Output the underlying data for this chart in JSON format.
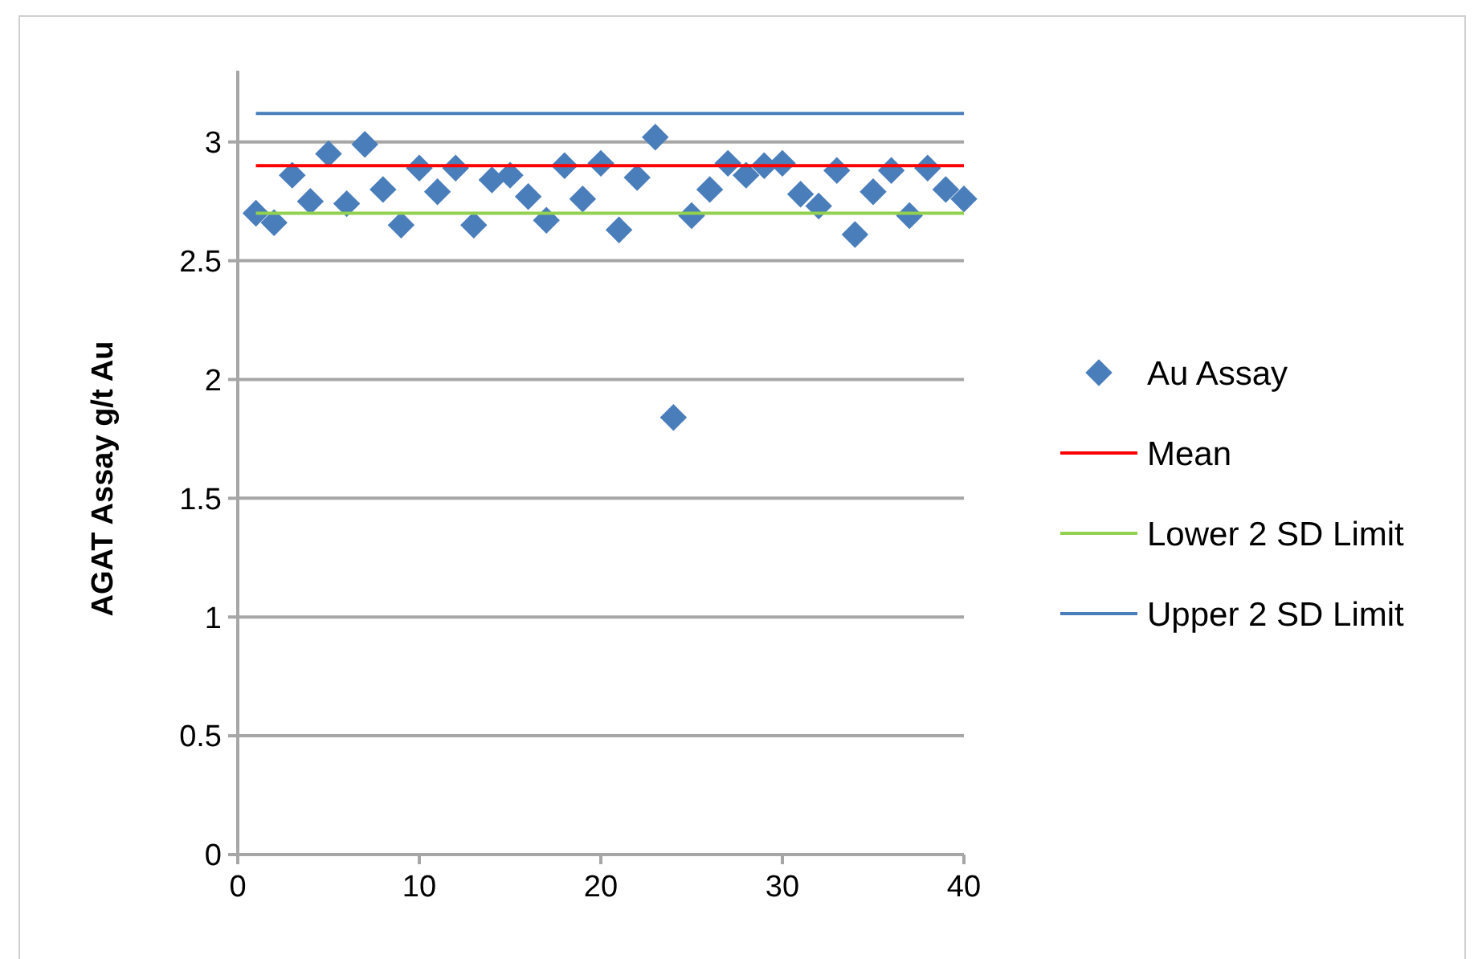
{
  "chart_data": {
    "type": "scatter",
    "ylabel": "AGAT Assay g/t Au",
    "x": [
      1,
      2,
      3,
      4,
      5,
      6,
      7,
      8,
      9,
      10,
      11,
      12,
      13,
      14,
      15,
      16,
      17,
      18,
      19,
      20,
      21,
      22,
      23,
      24,
      25,
      26,
      27,
      28,
      29,
      30,
      31,
      32,
      33,
      34,
      35,
      36,
      37,
      38,
      39,
      40
    ],
    "series": [
      {
        "name": "Au Assay",
        "color": "#4a7ebb",
        "marker": "diamond",
        "values": [
          2.7,
          2.66,
          2.86,
          2.75,
          2.95,
          2.74,
          2.99,
          2.8,
          2.65,
          2.89,
          2.79,
          2.89,
          2.65,
          2.84,
          2.86,
          2.77,
          2.67,
          2.9,
          2.76,
          2.91,
          2.63,
          2.85,
          3.02,
          1.84,
          2.69,
          2.8,
          2.91,
          2.86,
          2.9,
          2.91,
          2.78,
          2.73,
          2.88,
          2.61,
          2.79,
          2.88,
          2.69,
          2.89,
          2.8,
          2.76
        ]
      },
      {
        "name": "Mean",
        "type": "line",
        "color": "#ff0000",
        "marker": "none",
        "values": [
          2.9,
          2.9,
          2.9,
          2.9,
          2.9,
          2.9,
          2.9,
          2.9,
          2.9,
          2.9,
          2.9,
          2.9,
          2.9,
          2.9,
          2.9,
          2.9,
          2.9,
          2.9,
          2.9,
          2.9,
          2.9,
          2.9,
          2.9,
          2.9,
          2.9,
          2.9,
          2.9,
          2.9,
          2.9,
          2.9,
          2.9,
          2.9,
          2.9,
          2.9,
          2.9,
          2.9,
          2.9,
          2.9,
          2.9,
          2.9
        ]
      },
      {
        "name": "Lower 2 SD Limit",
        "type": "line",
        "color": "#92d050",
        "marker": "none",
        "values": [
          2.7,
          2.7,
          2.7,
          2.7,
          2.7,
          2.7,
          2.7,
          2.7,
          2.7,
          2.7,
          2.7,
          2.7,
          2.7,
          2.7,
          2.7,
          2.7,
          2.7,
          2.7,
          2.7,
          2.7,
          2.7,
          2.7,
          2.7,
          2.7,
          2.7,
          2.7,
          2.7,
          2.7,
          2.7,
          2.7,
          2.7,
          2.7,
          2.7,
          2.7,
          2.7,
          2.7,
          2.7,
          2.7,
          2.7,
          2.7
        ]
      },
      {
        "name": "Upper 2 SD Limit",
        "type": "line",
        "color": "#4a7ebb",
        "marker": "none",
        "values": [
          3.12,
          3.12,
          3.12,
          3.12,
          3.12,
          3.12,
          3.12,
          3.12,
          3.12,
          3.12,
          3.12,
          3.12,
          3.12,
          3.12,
          3.12,
          3.12,
          3.12,
          3.12,
          3.12,
          3.12,
          3.12,
          3.12,
          3.12,
          3.12,
          3.12,
          3.12,
          3.12,
          3.12,
          3.12,
          3.12,
          3.12,
          3.12,
          3.12,
          3.12,
          3.12,
          3.12,
          3.12,
          3.12,
          3.12,
          3.12
        ]
      }
    ],
    "xlim": [
      0,
      40
    ],
    "xticks": [
      0,
      10,
      20,
      30,
      40
    ],
    "ylim": [
      0,
      3.3
    ],
    "yticks": [
      0,
      0.5,
      1,
      1.5,
      2,
      2.5,
      3
    ],
    "grid": "y",
    "legend": "right"
  }
}
